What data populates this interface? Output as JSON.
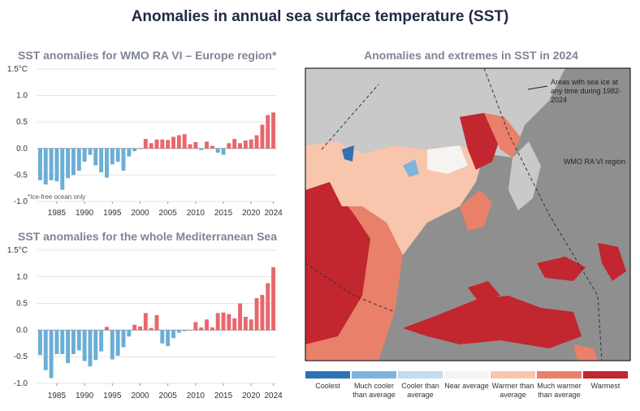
{
  "title": "Anomalies in annual sea surface temperature (SST)",
  "charts": {
    "europe": {
      "title": "SST anomalies for WMO RA VI – Europe region*",
      "note": "*Ice-free ocean only"
    },
    "med": {
      "title": "SST anomalies for the whole Mediterranean Sea"
    }
  },
  "chart_data": [
    {
      "type": "bar",
      "title": "SST anomalies for WMO RA VI – Europe region*",
      "x": [
        1982,
        1983,
        1984,
        1985,
        1986,
        1987,
        1988,
        1989,
        1990,
        1991,
        1992,
        1993,
        1994,
        1995,
        1996,
        1997,
        1998,
        1999,
        2000,
        2001,
        2002,
        2003,
        2004,
        2005,
        2006,
        2007,
        2008,
        2009,
        2010,
        2011,
        2012,
        2013,
        2014,
        2015,
        2016,
        2017,
        2018,
        2019,
        2020,
        2021,
        2022,
        2023,
        2024
      ],
      "values": [
        -0.6,
        -0.68,
        -0.6,
        -0.62,
        -0.78,
        -0.56,
        -0.5,
        -0.42,
        -0.25,
        -0.12,
        -0.32,
        -0.45,
        -0.55,
        -0.3,
        -0.25,
        -0.42,
        -0.15,
        -0.05,
        0.0,
        0.18,
        0.1,
        0.17,
        0.17,
        0.16,
        0.22,
        0.25,
        0.27,
        0.08,
        0.12,
        -0.03,
        0.13,
        0.05,
        -0.08,
        -0.12,
        0.1,
        0.18,
        0.1,
        0.15,
        0.17,
        0.25,
        0.45,
        0.63,
        0.68
      ],
      "xticks": [
        "1985",
        "1990",
        "1995",
        "2000",
        "2005",
        "2010",
        "2015",
        "2020",
        "2024"
      ],
      "yticks": [
        "1.5°C",
        "1.0",
        "0.5",
        "0.0",
        "-0.5",
        "-1.0"
      ],
      "ylim": [
        -1.0,
        1.5
      ],
      "colors": {
        "negative": "#6baed6",
        "positive": "#e8676b"
      }
    },
    {
      "type": "bar",
      "title": "SST anomalies for the whole Mediterranean Sea",
      "x": [
        1982,
        1983,
        1984,
        1985,
        1986,
        1987,
        1988,
        1989,
        1990,
        1991,
        1992,
        1993,
        1994,
        1995,
        1996,
        1997,
        1998,
        1999,
        2000,
        2001,
        2002,
        2003,
        2004,
        2005,
        2006,
        2007,
        2008,
        2009,
        2010,
        2011,
        2012,
        2013,
        2014,
        2015,
        2016,
        2017,
        2018,
        2019,
        2020,
        2021,
        2022,
        2023,
        2024
      ],
      "values": [
        -0.47,
        -0.75,
        -0.9,
        -0.45,
        -0.45,
        -0.62,
        -0.45,
        -0.38,
        -0.58,
        -0.68,
        -0.56,
        -0.4,
        0.06,
        -0.55,
        -0.48,
        -0.32,
        -0.12,
        0.1,
        0.07,
        0.32,
        0.04,
        0.28,
        -0.25,
        -0.3,
        -0.15,
        -0.05,
        -0.02,
        0.0,
        0.15,
        0.05,
        0.2,
        0.05,
        0.32,
        0.33,
        0.3,
        0.22,
        0.5,
        0.25,
        0.2,
        0.6,
        0.66,
        0.88,
        1.18
      ],
      "xticks": [
        "1985",
        "1990",
        "1995",
        "2000",
        "2005",
        "2010",
        "2015",
        "2020",
        "2024"
      ],
      "yticks": [
        "1.5°C",
        "1.0",
        "0.5",
        "0.0",
        "-0.5",
        "-1.0"
      ],
      "ylim": [
        -1.0,
        1.5
      ],
      "colors": {
        "negative": "#6baed6",
        "positive": "#e8676b"
      }
    }
  ],
  "map": {
    "title": "Anomalies and extremes in SST in 2024",
    "ice_label": "Areas with sea ice at any time during 1982-2024",
    "region_label": "WMO RA VI region"
  },
  "legend": [
    {
      "label": "Coolest",
      "color": "#2f72b3"
    },
    {
      "label": "Much cooler than average",
      "color": "#7fb3da"
    },
    {
      "label": "Cooler than average",
      "color": "#c3dcee"
    },
    {
      "label": "Near average",
      "color": "#f6f3f1"
    },
    {
      "label": "Warmer than average",
      "color": "#f7c6ad"
    },
    {
      "label": "Much warmer than average",
      "color": "#e8806a"
    },
    {
      "label": "Warmest",
      "color": "#c2262e"
    }
  ]
}
